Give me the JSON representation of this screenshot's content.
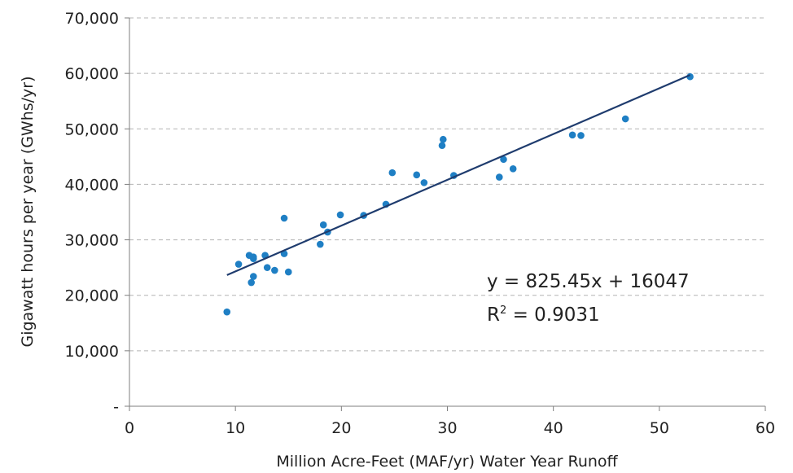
{
  "chart_data": {
    "type": "scatter",
    "xlabel": "Million Acre-Feet (MAF/yr) Water Year Runoff",
    "ylabel": "Gigawatt hours per year (GWhs/yr)",
    "xlim": [
      0,
      60
    ],
    "ylim": [
      0,
      70000
    ],
    "x_ticks": [
      0,
      10,
      20,
      30,
      40,
      50,
      60
    ],
    "x_tick_labels": [
      "0",
      "10",
      "20",
      "30",
      "40",
      "50",
      "60"
    ],
    "y_ticks": [
      0,
      10000,
      20000,
      30000,
      40000,
      50000,
      60000,
      70000
    ],
    "y_tick_labels": [
      "-",
      "10,000",
      "20,000",
      "30,000",
      "40,000",
      "50,000",
      "60,000",
      "70,000"
    ],
    "grid": {
      "horizontal": true,
      "style": "dashed"
    },
    "colors": {
      "points": "#1f7fc4",
      "trendline": "#1f3c6e",
      "grid": "#b4b4b4",
      "axis": "#7f7f7f"
    },
    "points": [
      {
        "x": 9.2,
        "y": 17000
      },
      {
        "x": 10.3,
        "y": 25600
      },
      {
        "x": 11.3,
        "y": 27200
      },
      {
        "x": 11.5,
        "y": 22300
      },
      {
        "x": 11.7,
        "y": 23400
      },
      {
        "x": 11.7,
        "y": 26600
      },
      {
        "x": 11.7,
        "y": 26900
      },
      {
        "x": 12.8,
        "y": 27200
      },
      {
        "x": 13.0,
        "y": 25000
      },
      {
        "x": 13.7,
        "y": 24500
      },
      {
        "x": 14.6,
        "y": 27500
      },
      {
        "x": 14.6,
        "y": 33900
      },
      {
        "x": 15.0,
        "y": 24200
      },
      {
        "x": 18.0,
        "y": 29200
      },
      {
        "x": 18.3,
        "y": 32700
      },
      {
        "x": 18.7,
        "y": 31400
      },
      {
        "x": 19.9,
        "y": 34500
      },
      {
        "x": 22.1,
        "y": 34400
      },
      {
        "x": 24.2,
        "y": 36400
      },
      {
        "x": 24.8,
        "y": 42100
      },
      {
        "x": 27.1,
        "y": 41700
      },
      {
        "x": 27.8,
        "y": 40300
      },
      {
        "x": 29.5,
        "y": 47000
      },
      {
        "x": 29.6,
        "y": 48100
      },
      {
        "x": 30.6,
        "y": 41600
      },
      {
        "x": 34.9,
        "y": 41300
      },
      {
        "x": 35.3,
        "y": 44500
      },
      {
        "x": 36.2,
        "y": 42800
      },
      {
        "x": 41.8,
        "y": 48900
      },
      {
        "x": 42.6,
        "y": 48800
      },
      {
        "x": 46.8,
        "y": 51800
      },
      {
        "x": 52.9,
        "y": 59400
      }
    ],
    "trendline": {
      "slope": 825.45,
      "intercept": 16047,
      "x_range": [
        9.2,
        52.9
      ],
      "equation_label": "y = 825.45x + 16047",
      "r2_prefix": "R",
      "r2_sup": "2",
      "r2_value": " = 0.9031"
    }
  }
}
